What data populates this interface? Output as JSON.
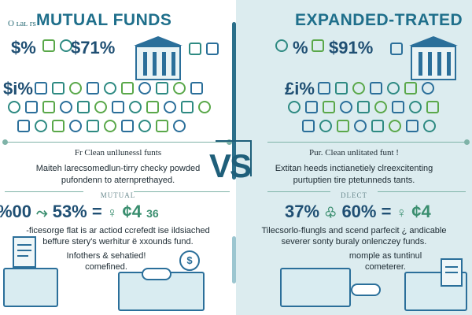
{
  "left": {
    "tag": "O ʟaʟ rs",
    "title": "MUTUAL FUNDS",
    "row1": [
      "$%",
      "$71%"
    ],
    "row2_sym": "$i%",
    "subhead": "Fr Clean unllunessl funts",
    "desc_line1": "Maiteh larecsomedlun-tirry checky powded",
    "desc_line2": "pufondenn to aternprethayed.",
    "label": "MUTUAL",
    "stat1": "%00",
    "stat2": "53%",
    "stat3": "=",
    "stat4": "¢4",
    "stat4b": "36",
    "bottom_line1": "-ficesorge flat is ar actiod ccrefedt ise ildsiached",
    "bottom_line2": "beffure stery's werhitur ë xxounds fund.",
    "caption_line1": "Infothers & sehatied!",
    "caption_line2": "comefined."
  },
  "right": {
    "title": "EXPANDED-TRATED",
    "row1": [
      "%",
      "$91%"
    ],
    "row2_sym": "£i%",
    "subhead": "Pur. Clean unlitated funt !",
    "desc_line1": "Extitan heeds inctianetiely clreexcitenting",
    "desc_line2": "purtuptien tire ptetunneds tants.",
    "label": "DLECT",
    "stat1": "37%",
    "stat2": "60%",
    "stat3": "=",
    "stat4": "¢4",
    "bottom_line1": "Tilecsorlo-flungls and scend parfecit ¿ andicable",
    "bottom_line2": "severer sonty buraly onlenczey funds.",
    "caption_line1": "momple as tuntinul",
    "caption_line2": "cometerer."
  },
  "vs": "VS",
  "colors": {
    "title": "#1f6f8b",
    "stat": "#1f4f73",
    "right_bg": "#dcecef",
    "accent_green": "#3a8e6f"
  }
}
